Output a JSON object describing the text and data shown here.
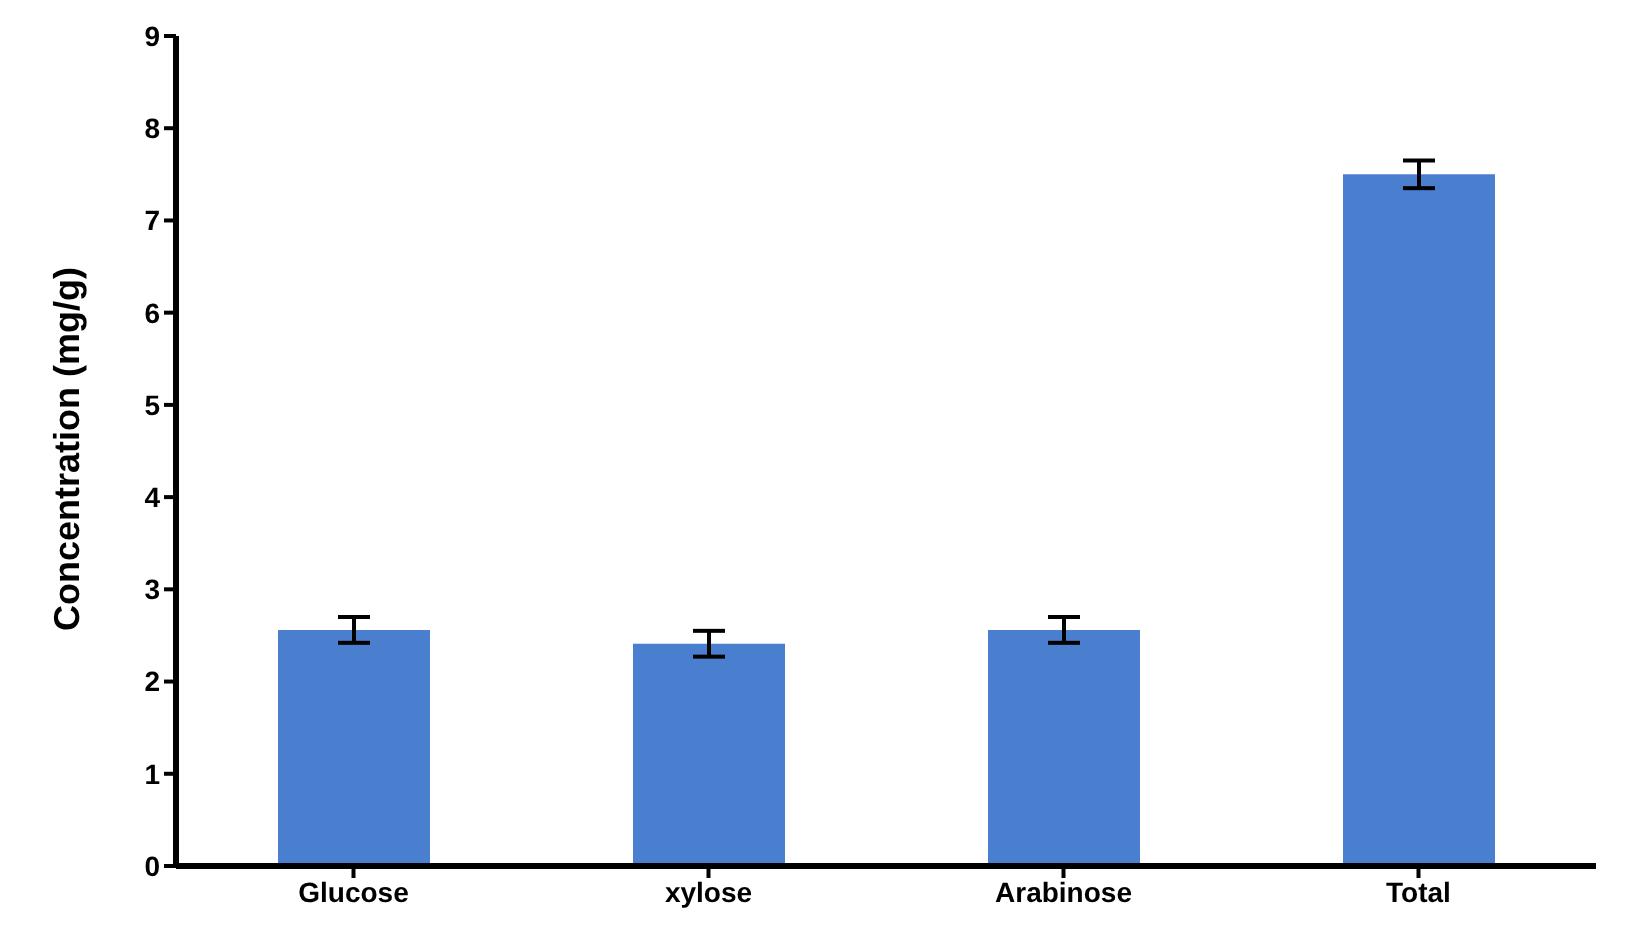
{
  "chart_data": {
    "type": "bar",
    "ylabel": "Concentration (mg/g)",
    "categories": [
      "Glucose",
      "xylose",
      "Arabinose",
      "Total"
    ],
    "values": [
      2.56,
      2.41,
      2.56,
      7.5
    ],
    "errors": [
      0.14,
      0.14,
      0.14,
      0.15
    ],
    "color": "#4a7fcf",
    "ylim": [
      0,
      9
    ],
    "yticks": [
      0,
      1,
      2,
      3,
      4,
      5,
      6,
      7,
      8,
      9
    ],
    "grid": false,
    "legend": false
  }
}
